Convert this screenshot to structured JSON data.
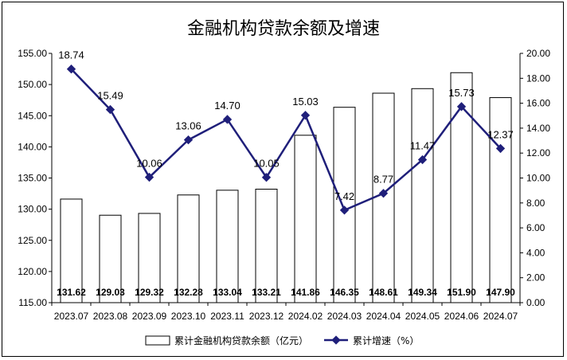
{
  "chart_data": {
    "type": "bar+line",
    "title": "金融机构贷款余额及增速",
    "categories": [
      "2023.07",
      "2023.08",
      "2023.09",
      "2023.10",
      "2023.11",
      "2023.12",
      "2024.02",
      "2024.03",
      "2024.04",
      "2024.05",
      "2024.06",
      "2024.07"
    ],
    "series": [
      {
        "name": "累计金融机构贷款余额（亿元）",
        "type": "bar",
        "axis": "left",
        "values": [
          131.62,
          129.03,
          129.32,
          132.28,
          133.04,
          133.21,
          141.86,
          146.35,
          148.61,
          149.34,
          151.9,
          147.9
        ],
        "labels": [
          "131.62",
          "129.03",
          "129.32",
          "132.28",
          "133.04",
          "133.21",
          "141.86",
          "146.35",
          "148.61",
          "149.34",
          "151.90",
          "147.90"
        ]
      },
      {
        "name": "累计增速（%）",
        "type": "line",
        "axis": "right",
        "values": [
          18.74,
          15.49,
          10.06,
          13.06,
          14.7,
          10.05,
          15.03,
          7.42,
          8.77,
          11.47,
          15.73,
          12.37
        ],
        "labels": [
          "18.74",
          "15.49",
          "10.06",
          "13.06",
          "14.70",
          "10.05",
          "15.03",
          "7.42",
          "8.77",
          "11.47",
          "15.73",
          "12.37"
        ]
      }
    ],
    "y_left": {
      "min": 115,
      "max": 155,
      "step": 5,
      "ticks": [
        "115.00",
        "120.00",
        "125.00",
        "130.00",
        "135.00",
        "140.00",
        "145.00",
        "150.00",
        "155.00"
      ]
    },
    "y_right": {
      "min": 0,
      "max": 20,
      "step": 2,
      "ticks": [
        "0.00",
        "2.00",
        "4.00",
        "6.00",
        "8.00",
        "10.00",
        "12.00",
        "14.00",
        "16.00",
        "18.00",
        "20.00"
      ]
    },
    "grid": false,
    "legend_position": "bottom",
    "colors": {
      "bar_fill": "#ffffff",
      "bar_stroke": "#000000",
      "line": "#1f1f7a"
    }
  }
}
